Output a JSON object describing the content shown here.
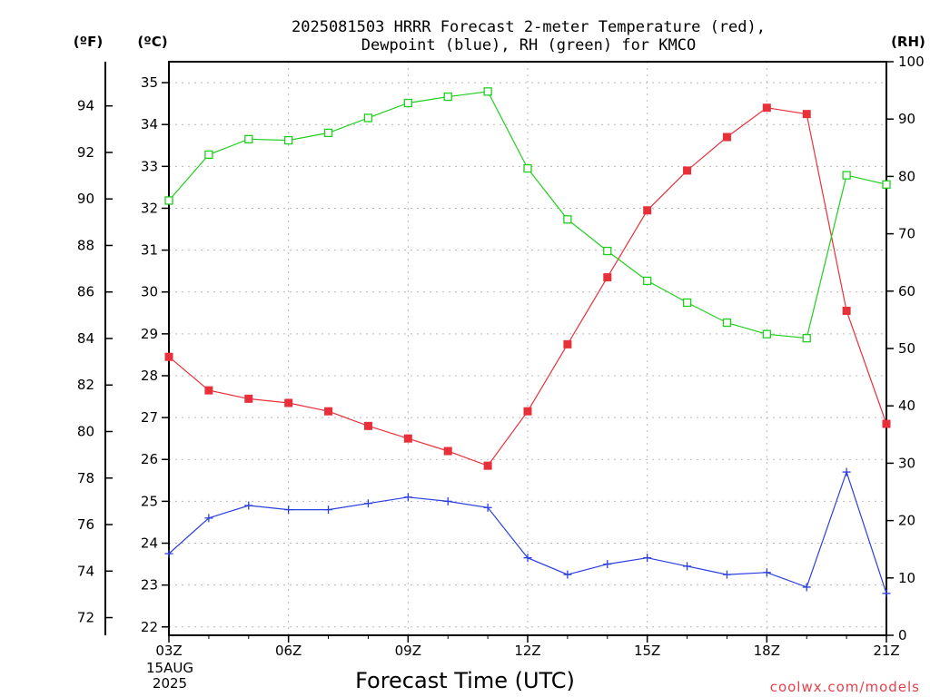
{
  "chart_data": {
    "type": "line",
    "title_line1": "2025081503 HRRR Forecast 2-meter Temperature (red),",
    "title_line2": "Dewpoint (blue), RH (green) for KMCO",
    "xlabel": "Forecast Time (UTC)",
    "credit": "coolwx.com/models",
    "left_unit_f": "(ºF)",
    "left_unit_c": "(ºC)",
    "right_unit": "(RH)",
    "x_ticks": [
      {
        "hour": 0,
        "label": "03Z"
      },
      {
        "hour": 3,
        "label": "06Z"
      },
      {
        "hour": 6,
        "label": "09Z"
      },
      {
        "hour": 9,
        "label": "12Z"
      },
      {
        "hour": 12,
        "label": "15Z"
      },
      {
        "hour": 15,
        "label": "18Z"
      },
      {
        "hour": 18,
        "label": "21Z"
      }
    ],
    "date_label_line1": "15AUG",
    "date_label_line2": "2025",
    "x_range": [
      0,
      18
    ],
    "celsius_range": [
      21.8,
      35.5
    ],
    "rh_range": [
      0,
      100
    ],
    "celsius_ticks": [
      "22",
      "23",
      "24",
      "25",
      "26",
      "27",
      "28",
      "29",
      "30",
      "31",
      "32",
      "33",
      "34",
      "35"
    ],
    "fahrenheit_ticks": [
      "72",
      "74",
      "76",
      "78",
      "80",
      "82",
      "84",
      "86",
      "88",
      "90",
      "92",
      "94"
    ],
    "rh_ticks": [
      "0",
      "10",
      "20",
      "30",
      "40",
      "50",
      "60",
      "70",
      "80",
      "90",
      "100"
    ],
    "colors": {
      "temperature": "#e8303a",
      "dewpoint": "#2a3ee0",
      "rh": "#1ed01e"
    },
    "series": [
      {
        "key": "temperature",
        "unit": "C",
        "hours": [
          0,
          1,
          2,
          3,
          4,
          5,
          6,
          7,
          8,
          9,
          10,
          11,
          12,
          13,
          14,
          15,
          16,
          17,
          18
        ],
        "values": [
          28.45,
          27.65,
          27.45,
          27.35,
          27.15,
          26.8,
          26.5,
          26.2,
          25.85,
          27.15,
          28.75,
          30.35,
          31.95,
          32.9,
          33.7,
          34.4,
          34.25,
          29.55,
          26.85
        ]
      },
      {
        "key": "dewpoint",
        "unit": "C",
        "hours": [
          0,
          1,
          2,
          3,
          4,
          5,
          6,
          7,
          8,
          9,
          10,
          11,
          12,
          13,
          14,
          15,
          16,
          17,
          18
        ],
        "values": [
          23.75,
          24.6,
          24.9,
          24.8,
          24.8,
          24.95,
          25.1,
          25.0,
          24.85,
          23.65,
          23.25,
          23.5,
          23.65,
          23.45,
          23.25,
          23.3,
          22.95,
          25.7,
          22.8
        ]
      },
      {
        "key": "rh",
        "unit": "%",
        "hours": [
          0,
          1,
          2,
          3,
          4,
          5,
          6,
          7,
          8,
          9,
          10,
          11,
          12,
          13,
          14,
          15,
          16,
          17,
          18
        ],
        "values": [
          75.8,
          83.8,
          86.5,
          86.3,
          87.6,
          90.2,
          92.8,
          93.9,
          94.8,
          81.4,
          72.5,
          67.0,
          61.8,
          58.0,
          54.5,
          52.5,
          51.8,
          80.2,
          78.6
        ]
      }
    ]
  }
}
